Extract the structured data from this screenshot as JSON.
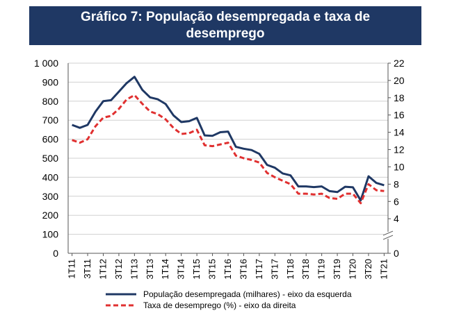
{
  "title": "Gráfico 7: População desempregada e taxa de desemprego",
  "chart_data": {
    "type": "line",
    "title": "Gráfico 7: População desempregada e taxa de desemprego",
    "x": [
      "1T11",
      "2T11",
      "3T11",
      "4T11",
      "1T12",
      "2T12",
      "3T12",
      "4T12",
      "1T13",
      "2T13",
      "3T13",
      "4T13",
      "1T14",
      "2T14",
      "3T14",
      "4T14",
      "1T15",
      "2T15",
      "3T15",
      "4T15",
      "1T16",
      "2T16",
      "3T16",
      "4T16",
      "1T17",
      "2T17",
      "3T17",
      "4T17",
      "1T18",
      "2T18",
      "3T18",
      "4T18",
      "1T19",
      "2T19",
      "3T19",
      "4T19",
      "1T20",
      "2T20",
      "3T20",
      "4T20",
      "1T21"
    ],
    "x_tick_labels": [
      "1T11",
      "3T11",
      "1T12",
      "3T12",
      "1T13",
      "3T13",
      "1T14",
      "3T14",
      "1T15",
      "3T15",
      "1T16",
      "3T16",
      "1T17",
      "3T17",
      "1T18",
      "3T18",
      "1T19",
      "3T19",
      "1T20",
      "3T20",
      "1T21"
    ],
    "series": [
      {
        "name": "População desempregada (milhares) - eixo da esquerda",
        "axis": "left",
        "color": "#1f3864",
        "style": "solid",
        "values": [
          675,
          660,
          675,
          745,
          800,
          805,
          850,
          895,
          928,
          860,
          820,
          810,
          785,
          725,
          690,
          695,
          712,
          620,
          618,
          637,
          640,
          560,
          550,
          543,
          523,
          465,
          450,
          420,
          410,
          352,
          352,
          348,
          352,
          327,
          322,
          350,
          347,
          278,
          405,
          370,
          358
        ]
      },
      {
        "name": "Taxa de desemprego (%) - eixo da direita",
        "axis": "right",
        "color": "#e03030",
        "style": "dashed",
        "values": [
          13.1,
          12.8,
          13.2,
          14.7,
          15.7,
          15.9,
          16.7,
          17.8,
          18.3,
          17.3,
          16.4,
          16.1,
          15.5,
          14.5,
          13.8,
          13.9,
          14.3,
          12.5,
          12.4,
          12.6,
          12.8,
          11.3,
          11.0,
          10.8,
          10.5,
          9.3,
          8.8,
          8.4,
          8.0,
          6.9,
          6.9,
          6.8,
          6.9,
          6.4,
          6.3,
          6.9,
          6.9,
          5.8,
          8.0,
          7.3,
          7.2
        ]
      }
    ],
    "y_left": {
      "min": 0,
      "max": 1000,
      "ticks": [
        0,
        100,
        200,
        300,
        400,
        500,
        600,
        700,
        800,
        900,
        1000
      ],
      "tick_labels": [
        "0",
        "100",
        "200",
        "300",
        "400",
        "500",
        "600",
        "700",
        "800",
        "900",
        "1 000"
      ]
    },
    "y_right": {
      "min": 0,
      "max": 22,
      "ticks": [
        0,
        4,
        6,
        8,
        10,
        12,
        14,
        16,
        18,
        20,
        22
      ],
      "tick_labels": [
        "0",
        "4",
        "6",
        "8",
        "10",
        "12",
        "14",
        "16",
        "18",
        "20",
        "22"
      ],
      "axis_break": true
    },
    "grid": "horizontal",
    "legend_position": "bottom"
  }
}
